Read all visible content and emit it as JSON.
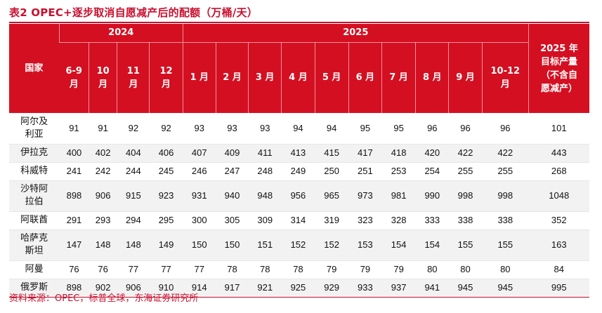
{
  "title": "表2  OPEC+逐步取消自愿减产后的配额（万桶/天）",
  "header": {
    "country_label": "国家",
    "year_2024": "2024",
    "year_2025": "2025",
    "target_line1": "2025 年",
    "target_line2": "目标产量",
    "target_line3": "（不含自",
    "target_line4": "愿减产）",
    "periods_2024": [
      {
        "line1": "6-9",
        "line2": "月"
      },
      {
        "line1": "10",
        "line2": "月"
      },
      {
        "line1": "11",
        "line2": "月"
      },
      {
        "line1": "12",
        "line2": "月"
      }
    ],
    "periods_2025": [
      "1 月",
      "2 月",
      "3 月",
      "4 月",
      "5 月",
      "6 月",
      "7 月",
      "8 月",
      "9 月"
    ],
    "period_1012": {
      "line1": "10-12",
      "line2": "月"
    }
  },
  "rows": [
    {
      "name_line1": "阿尔及",
      "name_line2": "利亚",
      "values": [
        "91",
        "91",
        "92",
        "92",
        "93",
        "93",
        "93",
        "94",
        "94",
        "95",
        "95",
        "96",
        "96",
        "96",
        "101"
      ]
    },
    {
      "name_line1": "伊拉克",
      "name_line2": "",
      "values": [
        "400",
        "402",
        "404",
        "406",
        "407",
        "409",
        "411",
        "413",
        "415",
        "417",
        "418",
        "420",
        "422",
        "422",
        "443"
      ]
    },
    {
      "name_line1": "科威特",
      "name_line2": "",
      "values": [
        "241",
        "242",
        "244",
        "245",
        "246",
        "247",
        "248",
        "249",
        "250",
        "251",
        "253",
        "254",
        "255",
        "255",
        "268"
      ]
    },
    {
      "name_line1": "沙特阿",
      "name_line2": "拉伯",
      "values": [
        "898",
        "906",
        "915",
        "923",
        "931",
        "940",
        "948",
        "956",
        "965",
        "973",
        "981",
        "990",
        "998",
        "998",
        "1048"
      ]
    },
    {
      "name_line1": "阿联酋",
      "name_line2": "",
      "values": [
        "291",
        "293",
        "294",
        "295",
        "300",
        "305",
        "309",
        "314",
        "319",
        "323",
        "328",
        "333",
        "338",
        "338",
        "352"
      ]
    },
    {
      "name_line1": "哈萨克",
      "name_line2": "斯坦",
      "values": [
        "147",
        "148",
        "148",
        "149",
        "150",
        "150",
        "151",
        "152",
        "152",
        "153",
        "154",
        "154",
        "155",
        "155",
        "163"
      ]
    },
    {
      "name_line1": "阿曼",
      "name_line2": "",
      "values": [
        "76",
        "76",
        "77",
        "77",
        "77",
        "78",
        "78",
        "78",
        "79",
        "79",
        "79",
        "80",
        "80",
        "80",
        "84"
      ]
    },
    {
      "name_line1": "俄罗斯",
      "name_line2": "",
      "values": [
        "898",
        "902",
        "906",
        "910",
        "914",
        "917",
        "921",
        "925",
        "929",
        "933",
        "937",
        "941",
        "945",
        "945",
        "995"
      ]
    }
  ],
  "source": "资料来源：OPEC，标普全球，东海证券研究所"
}
